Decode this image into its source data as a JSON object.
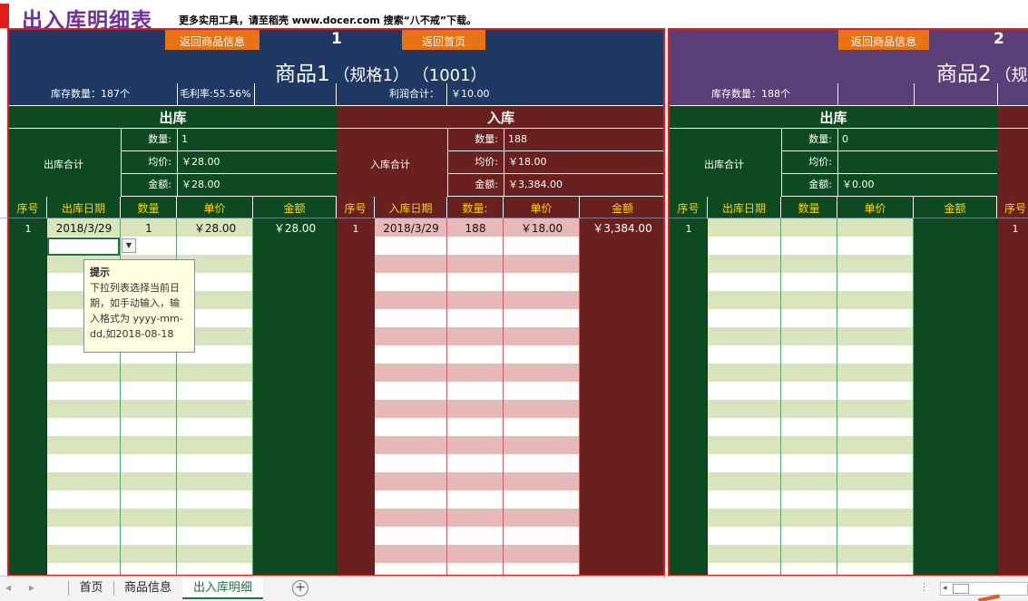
{
  "header": {
    "title": "出入库明细表",
    "hint": "更多实用工具，请至稻壳 www.docer.com 搜索“八不戒”下载。"
  },
  "buttons": {
    "back_product_info": "返回商品信息",
    "back_home": "返回首页"
  },
  "product1": {
    "number": "1",
    "name": "商品1",
    "spec": "（规格1）",
    "code": "（1001）",
    "stock_label": "库存数量：187个",
    "margin_label": "毛利率:55.56%",
    "profit_label": "利润合计：",
    "profit_value": "￥10.00",
    "out": {
      "title": "出库",
      "sum_label": "出库合计",
      "qty_key": "数量:",
      "qty_val": "1",
      "avg_key": "均价:",
      "avg_val": "￥28.00",
      "amt_key": "金额:",
      "amt_val": "￥28.00"
    },
    "in": {
      "title": "入库",
      "sum_label": "入库合计",
      "qty_key": "数量:",
      "qty_val": "188",
      "avg_key": "均价:",
      "avg_val": "￥18.00",
      "amt_key": "金额:",
      "amt_val": "￥3,384.00"
    },
    "out_cols": [
      "序号",
      "出库日期",
      "数量",
      "单价",
      "金额"
    ],
    "in_cols": [
      "序号",
      "入库日期",
      "数量:",
      "单价",
      "金额"
    ],
    "out_rows": [
      {
        "seq": "1",
        "date": "2018/3/29",
        "qty": "1",
        "price": "￥28.00",
        "amount": "￥28.00"
      }
    ],
    "in_rows": [
      {
        "seq": "1",
        "date": "2018/3/29",
        "qty": "188",
        "price": "￥18.00",
        "amount": "￥3,384.00"
      }
    ]
  },
  "product2": {
    "number": "2",
    "name": "商品2",
    "spec": "（规",
    "stock_label": "库存数量：188个",
    "out": {
      "title": "出库",
      "sum_label": "出库合计",
      "qty_key": "数量:",
      "qty_val": "0",
      "avg_key": "均价:",
      "avg_val": "",
      "amt_key": "金额:",
      "amt_val": "￥0.00"
    },
    "out_cols": [
      "序号",
      "出库日期",
      "数量",
      "单价",
      "金额",
      "序号"
    ],
    "out_rows": [
      {
        "seq": "1",
        "seq_in": "1"
      }
    ]
  },
  "tooltip": {
    "title": "提示",
    "body": "下拉列表选择当前日期，如手动输入，输入格式为 yyyy-mm-dd,如2018-08-18"
  },
  "sheet_tabs": [
    {
      "label": "首页"
    },
    {
      "label": "商品信息"
    },
    {
      "label": "出入库明细"
    }
  ],
  "colors": {
    "navy": "#1f3864",
    "purple": "#5b3f78",
    "dark_green": "#0e4a1f",
    "maroon": "#6b2020",
    "orange": "#e87312",
    "light_green": "#d8e4bc",
    "pink": "#e6b8b7",
    "title_purple": "#7030a0"
  }
}
